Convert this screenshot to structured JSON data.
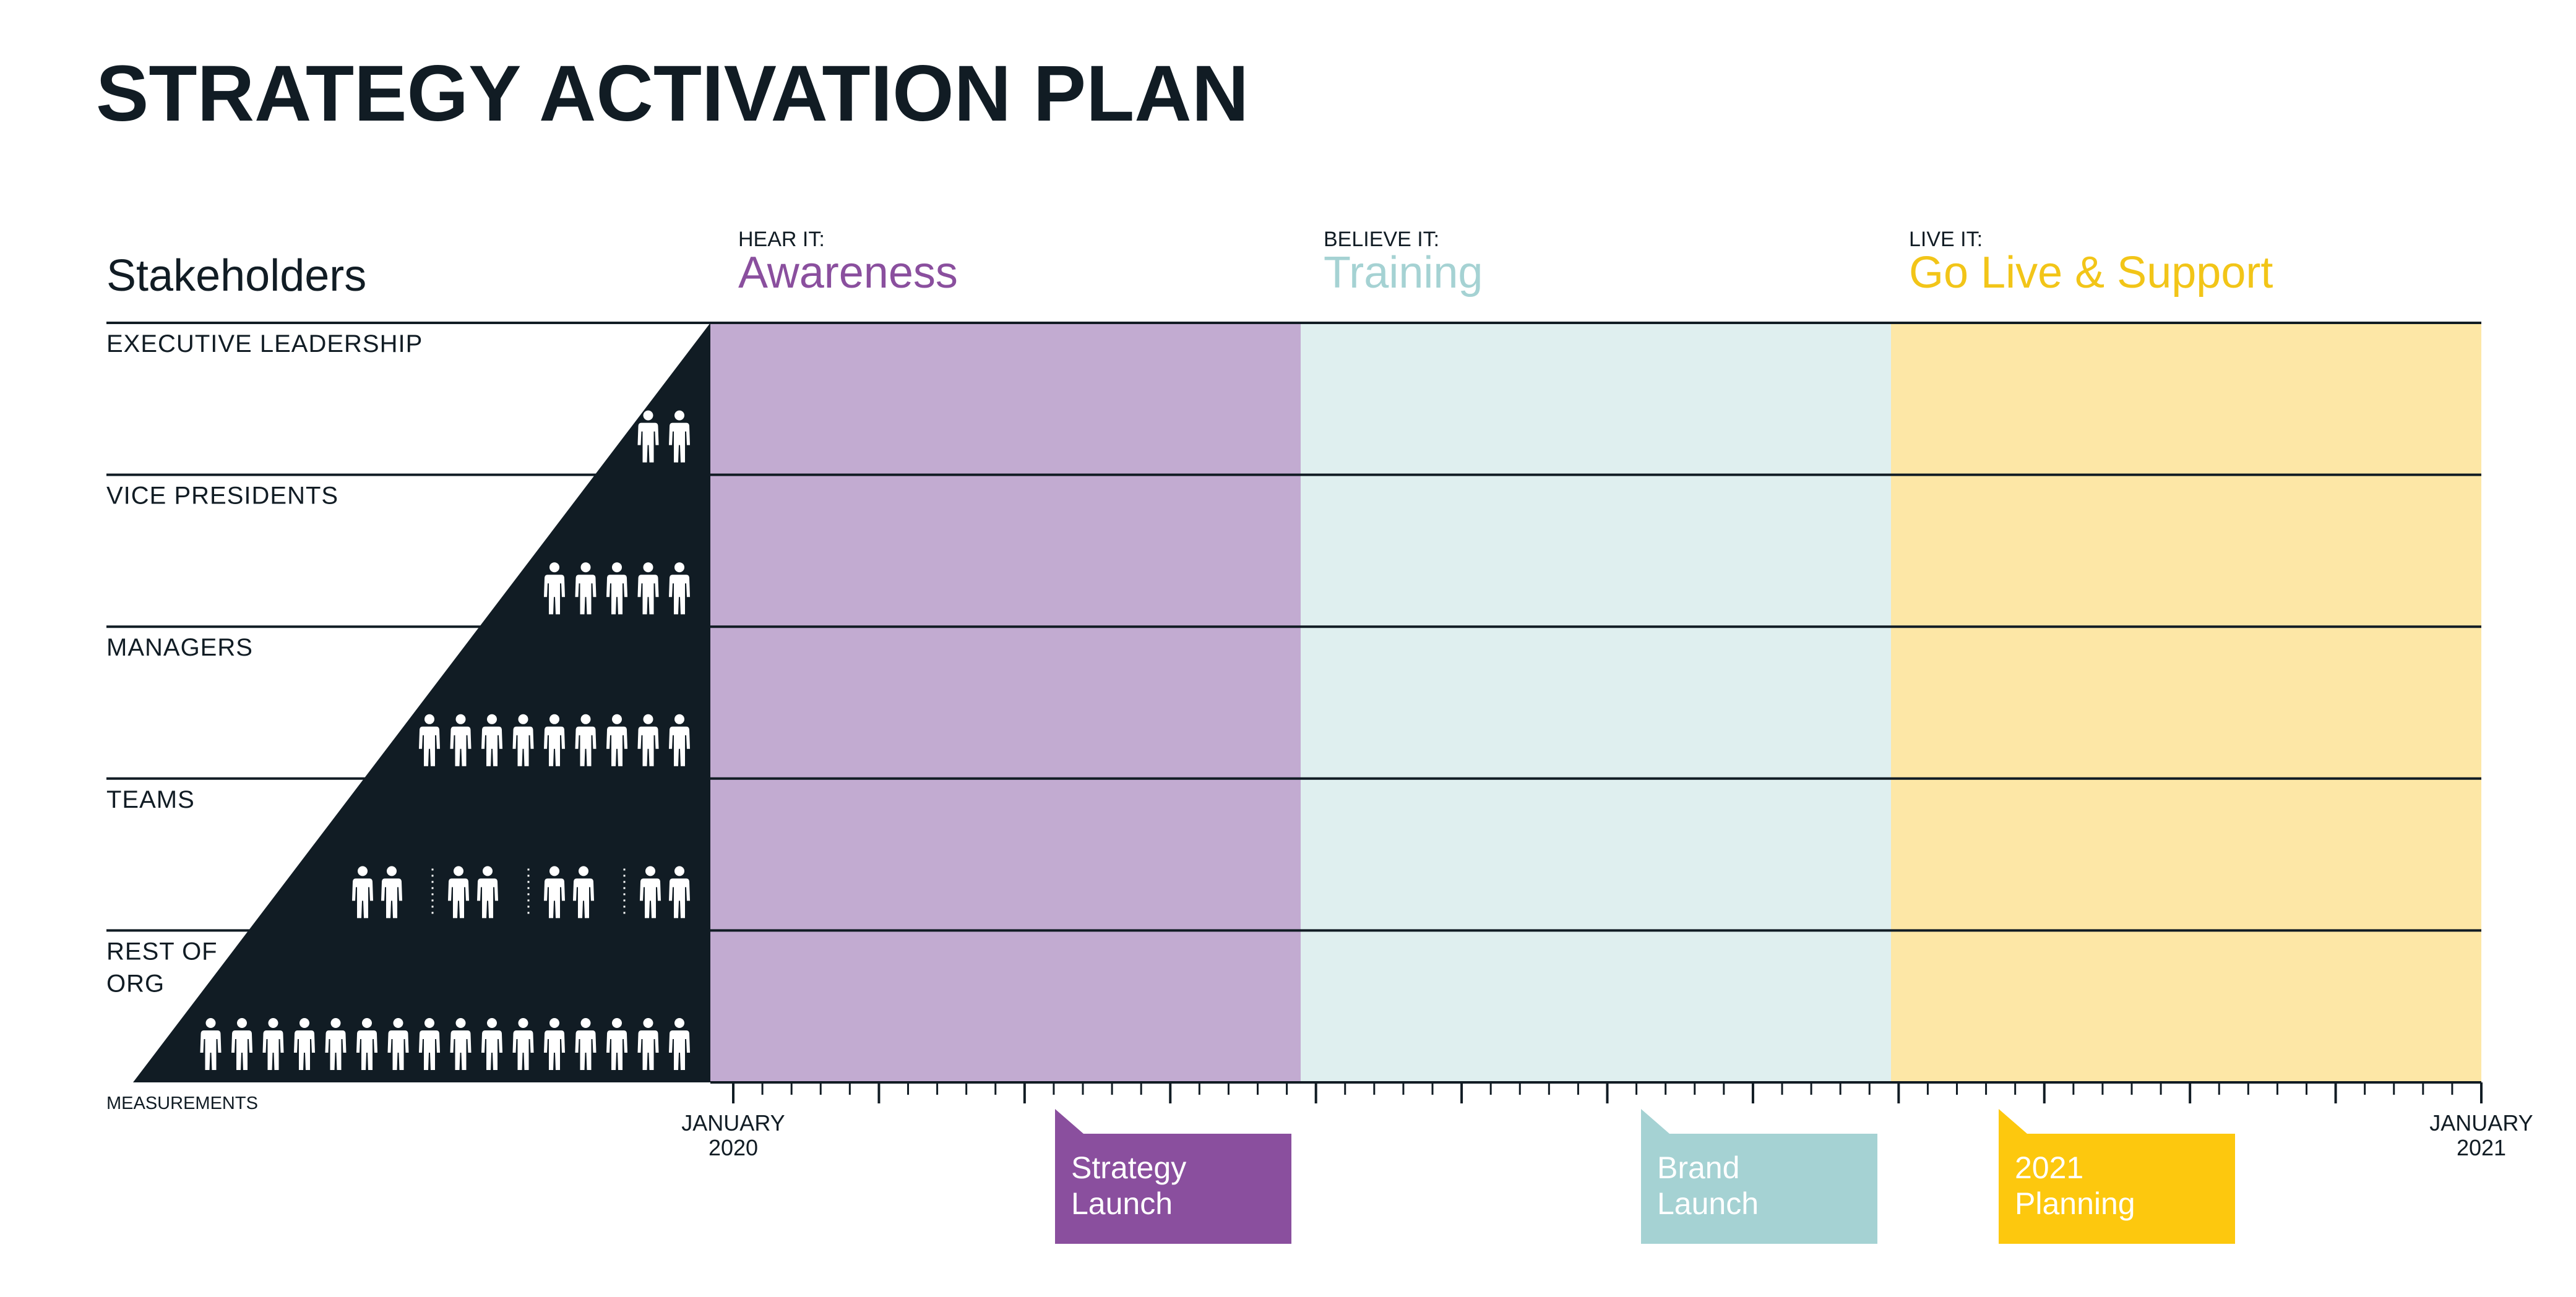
{
  "title": "STRATEGY ACTIVATION PLAN",
  "stakeholders_heading": "Stakeholders",
  "measurements_label": "MEASUREMENTS",
  "phases": [
    {
      "kicker": "HEAR IT:",
      "name": "Awareness",
      "color": "#8a4f9e",
      "fill": "#c2abd1"
    },
    {
      "kicker": "BELIEVE IT:",
      "name": "Training",
      "color": "#a5d2d3",
      "fill": "#dfefef"
    },
    {
      "kicker": "LIVE IT:",
      "name": "Go Live & Support",
      "color": "#f2c518",
      "fill": "#fde7a6"
    }
  ],
  "rows": [
    {
      "label": [
        "EXECUTIVE LEADERSHIP"
      ],
      "people_groups": [
        2
      ]
    },
    {
      "label": [
        "VICE PRESIDENTS"
      ],
      "people_groups": [
        5
      ]
    },
    {
      "label": [
        "MANAGERS"
      ],
      "people_groups": [
        9
      ]
    },
    {
      "label": [
        "TEAMS"
      ],
      "people_groups": [
        2,
        2,
        2,
        2
      ]
    },
    {
      "label": [
        "REST OF",
        "ORG"
      ],
      "people_groups": [
        16
      ]
    }
  ],
  "timeline": {
    "start_label": [
      "JANUARY",
      "2020"
    ],
    "end_label": [
      "JANUARY",
      "2021"
    ],
    "months": 12,
    "ticks_per_month": 5
  },
  "milestones": [
    {
      "label": [
        "Strategy",
        "Launch"
      ],
      "month": 3.3,
      "color": "#8a4f9e"
    },
    {
      "label": [
        "Brand",
        "Launch"
      ],
      "month": 9.4,
      "color": "#a5d2d3"
    },
    {
      "label": [
        "2021",
        "Planning"
      ],
      "month": 13.0,
      "color": "#fdc80e"
    }
  ],
  "colors": {
    "ink": "#111c24",
    "pyramid": "#111c24",
    "person": "#ffffff",
    "milestone_text": "#ffffff"
  },
  "icons": [
    "person-icon"
  ]
}
